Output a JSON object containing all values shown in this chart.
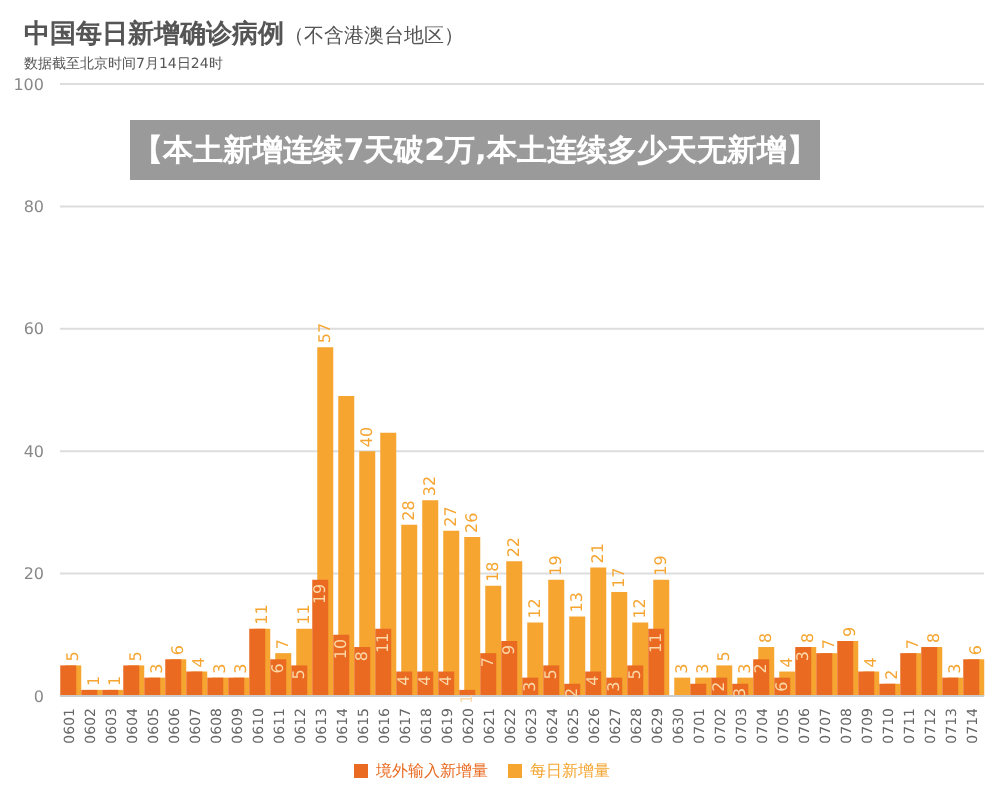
{
  "chart_data": {
    "type": "bar",
    "title": "中国每日新增确诊病例",
    "subtitle": "（不含港澳台地区）",
    "annotations": [
      "数据截至北京时间7月14日24时",
      "【本土新增连续7天破2万,本土连续多少天无新增】"
    ],
    "categories": [
      "0601",
      "0602",
      "0603",
      "0604",
      "0605",
      "0606",
      "0607",
      "0608",
      "0609",
      "0610",
      "0611",
      "0612",
      "0613",
      "0614",
      "0615",
      "0616",
      "0617",
      "0618",
      "0619",
      "0620",
      "0621",
      "0622",
      "0623",
      "0624",
      "0625",
      "0626",
      "0627",
      "0628",
      "0629",
      "0630",
      "0701",
      "0702",
      "0703",
      "0704",
      "0705",
      "0706",
      "0707",
      "0708",
      "0709",
      "0710",
      "0711",
      "0712",
      "0713",
      "0714"
    ],
    "series": [
      {
        "name": "每日新增量",
        "color": "#f5a530",
        "values": [
          5,
          1,
          1,
          5,
          3,
          6,
          4,
          3,
          3,
          11,
          7,
          11,
          57,
          49,
          40,
          43,
          28,
          32,
          27,
          26,
          18,
          22,
          12,
          19,
          13,
          21,
          17,
          12,
          19,
          3,
          3,
          5,
          3,
          8,
          4,
          8,
          7,
          9,
          4,
          2,
          7,
          8,
          3,
          6
        ],
        "value_labels": [
          "5",
          "1",
          "1",
          "5",
          "3",
          "6",
          "4",
          "3",
          "3",
          "11",
          "7",
          "11",
          "57",
          null,
          "40",
          null,
          "28",
          "32",
          "27",
          "26",
          "18",
          "22",
          "12",
          "19",
          "13",
          "21",
          "17",
          "12",
          "19",
          "3",
          "3",
          "5",
          "3",
          "8",
          "4",
          "8",
          "7",
          "9",
          "4",
          "2",
          "7",
          "8",
          "3",
          "6"
        ]
      },
      {
        "name": "境外输入新增量",
        "color": "#e96a20",
        "values": [
          5,
          1,
          1,
          5,
          3,
          6,
          4,
          3,
          3,
          11,
          6,
          5,
          19,
          10,
          8,
          11,
          4,
          4,
          4,
          1,
          7,
          9,
          3,
          5,
          2,
          4,
          3,
          5,
          11,
          0,
          2,
          3,
          2,
          6,
          3,
          8,
          7,
          9,
          4,
          2,
          7,
          8,
          3,
          6
        ],
        "value_labels": [
          null,
          null,
          null,
          null,
          null,
          null,
          null,
          null,
          null,
          null,
          "6",
          "5",
          "19",
          "10",
          "8",
          "11",
          "4",
          "4",
          "4",
          "1",
          "7",
          "9",
          "3",
          "5",
          "2",
          "4",
          "3",
          "5",
          "11",
          null,
          "2",
          "3",
          "2",
          "6",
          "3",
          null,
          null,
          null,
          null,
          null,
          null,
          null,
          null,
          null
        ]
      }
    ],
    "ylim": [
      0,
      100
    ],
    "yticks": [
      0,
      20,
      40,
      60,
      80,
      100
    ],
    "grid": "y",
    "legend": "bottom"
  }
}
